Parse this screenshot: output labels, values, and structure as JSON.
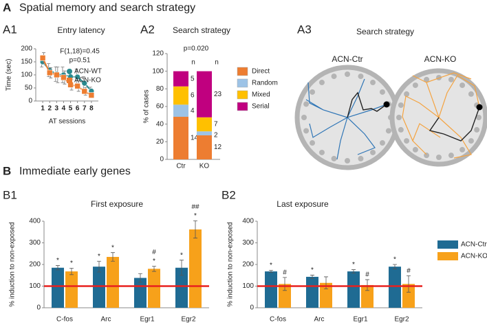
{
  "header_a": {
    "letter": "A",
    "title": "Spatial memory and search strategy"
  },
  "header_b": {
    "letter": "B",
    "title": "Immediate early genes"
  },
  "panel_labels": [
    "A1",
    "A2",
    "A3",
    "B1",
    "B2"
  ],
  "maze": {
    "title": "Search strategy",
    "labels": [
      "ACN-Ctr",
      "ACN-KO"
    ]
  },
  "chart_data": [
    {
      "type": "line",
      "title": "Entry latency",
      "x_label": "AT sessions",
      "y_label": "Time (sec)",
      "x": [
        1,
        2,
        3,
        4,
        5,
        6,
        7,
        8
      ],
      "xlim": [
        0,
        9
      ],
      "xticks": [
        1,
        2,
        3,
        4,
        5,
        6,
        7,
        8
      ],
      "ylim": [
        0,
        200
      ],
      "yticks": [
        0,
        50,
        100,
        150,
        200
      ],
      "annotations": [
        "F(1,18)=0.45",
        "p=0.51"
      ],
      "series": [
        {
          "name": "ACN-WT",
          "color": "#2a8a8f",
          "marker": "circle",
          "values": [
            150,
            118,
            103,
            100,
            93,
            92,
            68,
            38
          ],
          "errors": [
            20,
            25,
            28,
            30,
            28,
            30,
            25,
            15
          ]
        },
        {
          "name": "ACN-KO",
          "color": "#ed7d31",
          "marker": "square",
          "values": [
            165,
            108,
            100,
            90,
            62,
            57,
            37,
            22
          ],
          "errors": [
            20,
            20,
            30,
            25,
            20,
            20,
            15,
            10
          ]
        }
      ]
    },
    {
      "type": "stacked_bar",
      "title": "Search strategy",
      "annotation": "p=0.020",
      "y_label": "% of cases",
      "count_header": "n",
      "categories": [
        "Ctr",
        "KO"
      ],
      "ylim": [
        0,
        120
      ],
      "yticks": [
        0,
        20,
        40,
        60,
        80,
        100,
        120
      ],
      "series": [
        {
          "name": "Direct",
          "color": "#ed7d31",
          "values": [
            48.3,
            27.3
          ],
          "counts": [
            14,
            12
          ]
        },
        {
          "name": "Random",
          "color": "#9dc3e6",
          "values": [
            13.8,
            4.5
          ],
          "counts": [
            4,
            2
          ]
        },
        {
          "name": "Mixed",
          "color": "#ffc000",
          "values": [
            20.7,
            15.9
          ],
          "counts": [
            6,
            7
          ]
        },
        {
          "name": "Serial",
          "color": "#c0007f",
          "values": [
            17.2,
            52.3
          ],
          "counts": [
            5,
            23
          ]
        }
      ]
    },
    {
      "type": "bar",
      "title": "First exposure",
      "y_label": "% induction to non-exposed",
      "categories": [
        "C-fos",
        "Arc",
        "Egr1",
        "Egr2"
      ],
      "ylim": [
        0,
        400
      ],
      "yticks": [
        0,
        100,
        200,
        300,
        400
      ],
      "reference_line": {
        "value": 100,
        "color": "#e8201e"
      },
      "series": [
        {
          "name": "ACN-Ctr",
          "color": "#1f6b93",
          "values": [
            185,
            190,
            138,
            185
          ],
          "errors": [
            10,
            25,
            20,
            35
          ],
          "significance": [
            [
              "*"
            ],
            [
              "*"
            ],
            [],
            [
              "*"
            ]
          ]
        },
        {
          "name": "ACN-KO",
          "color": "#f7a11a",
          "values": [
            168,
            235,
            180,
            362
          ],
          "errors": [
            15,
            20,
            12,
            40
          ],
          "significance": [
            [
              "*"
            ],
            [
              "*"
            ],
            [
              "#",
              "*"
            ],
            [
              "##",
              "*"
            ]
          ]
        }
      ]
    },
    {
      "type": "bar",
      "title": "Last exposure",
      "y_label": "% induction to non-exposed",
      "categories": [
        "C-fos",
        "Arc",
        "Egr1",
        "Egr2"
      ],
      "ylim": [
        0,
        400
      ],
      "yticks": [
        0,
        100,
        200,
        300,
        400
      ],
      "reference_line": {
        "value": 100,
        "color": "#e8201e"
      },
      "legend": "right",
      "series": [
        {
          "name": "ACN-Ctr",
          "color": "#1f6b93",
          "values": [
            168,
            143,
            168,
            190
          ],
          "errors": [
            5,
            8,
            8,
            10
          ],
          "significance": [
            [
              "*"
            ],
            [
              "*"
            ],
            [
              "*"
            ],
            [
              "*"
            ]
          ]
        },
        {
          "name": "ACN-KO",
          "color": "#f7a11a",
          "values": [
            110,
            115,
            105,
            110
          ],
          "errors": [
            30,
            28,
            25,
            38
          ],
          "significance": [
            [
              "#"
            ],
            [],
            [
              "#"
            ],
            [
              "#"
            ]
          ]
        }
      ]
    }
  ]
}
